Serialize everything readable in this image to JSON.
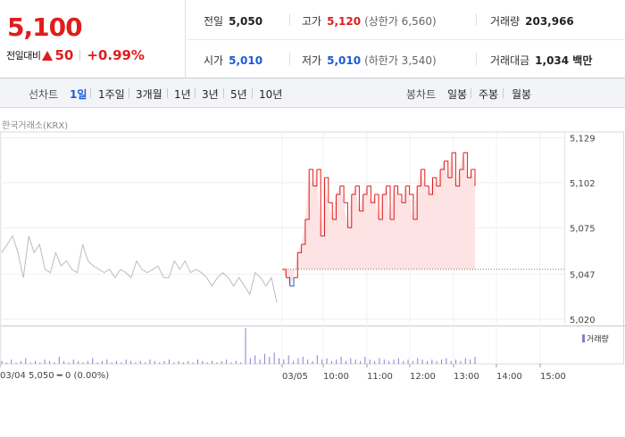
{
  "quote": {
    "current_price": "5,100",
    "change_label": "전일대비",
    "change_value": "50",
    "change_pct": "+0.99%",
    "stats": {
      "prev_close": {
        "label": "전일",
        "value": "5,050"
      },
      "high": {
        "label": "고가",
        "value": "5,120",
        "limit_label": "(상한가 6,560)"
      },
      "volume": {
        "label": "거래량",
        "value": "203,966"
      },
      "open": {
        "label": "시가",
        "value": "5,010"
      },
      "low": {
        "label": "저가",
        "value": "5,010",
        "limit_label": "(하한가 3,540)"
      },
      "amount": {
        "label": "거래대금",
        "value": "1,034 백만"
      }
    }
  },
  "period_tabs": {
    "line_label": "선차트",
    "line_periods": [
      "1일",
      "1주일",
      "3개월",
      "1년",
      "3년",
      "5년",
      "10년"
    ],
    "active_period": "1일",
    "candle_label": "봉차트",
    "candle_periods": [
      "일봉",
      "주봉",
      "월봉"
    ]
  },
  "chart_source": "한국거래소(KRX)",
  "legend_volume": "거래량",
  "footer_info": "03/04  5,050 ━ 0 (0.00%)",
  "colors": {
    "up": "#e01d1d",
    "down": "#1a5bd6",
    "neutral": "#bcbcbc",
    "fill": "#fde3e3",
    "volume": "#8c7bd3"
  },
  "chart_data": {
    "type": "line",
    "title": "",
    "xlabel": "",
    "ylabel": "",
    "y_ticks": [
      5020,
      5047,
      5075,
      5102,
      5129
    ],
    "y_tick_labels": [
      "5,020",
      "5,047",
      "5,075",
      "5,102",
      "5,129"
    ],
    "ylim": [
      5020,
      5129
    ],
    "x_tick_labels": [
      "03/04",
      "03/05",
      "10:00",
      "11:00",
      "12:00",
      "13:00",
      "14:00",
      "15:00"
    ],
    "baseline": 5050,
    "previous_day": {
      "name": "03/04",
      "values": [
        5060,
        5065,
        5070,
        5060,
        5045,
        5070,
        5060,
        5065,
        5050,
        5048,
        5060,
        5052,
        5055,
        5050,
        5048,
        5065,
        5055,
        5052,
        5050,
        5048,
        5050,
        5045,
        5050,
        5048,
        5045,
        5055,
        5050,
        5048,
        5050,
        5052,
        5045,
        5045,
        5055,
        5050,
        5055,
        5048,
        5050,
        5048,
        5045,
        5040,
        5045,
        5048,
        5045,
        5040,
        5045,
        5040,
        5035,
        5048,
        5045,
        5040,
        5045,
        5030
      ]
    },
    "current_day": {
      "name": "03/05",
      "values": [
        5050,
        5045,
        5040,
        5045,
        5060,
        5065,
        5080,
        5110,
        5100,
        5110,
        5070,
        5105,
        5090,
        5080,
        5095,
        5100,
        5090,
        5075,
        5095,
        5100,
        5085,
        5095,
        5100,
        5090,
        5095,
        5080,
        5095,
        5100,
        5080,
        5100,
        5095,
        5090,
        5100,
        5095,
        5080,
        5100,
        5110,
        5100,
        5095,
        5105,
        5100,
        5110,
        5115,
        5105,
        5120,
        5100,
        5110,
        5120,
        5105,
        5110,
        5100
      ]
    },
    "volume": [
      2,
      1,
      3,
      1,
      2,
      4,
      1,
      2,
      1,
      3,
      2,
      1,
      5,
      2,
      1,
      3,
      2,
      1,
      2,
      4,
      1,
      2,
      3,
      1,
      2,
      1,
      3,
      2,
      1,
      2,
      1,
      3,
      2,
      1,
      2,
      3,
      1,
      2,
      1,
      2,
      1,
      3,
      2,
      1,
      2,
      1,
      2,
      3,
      1,
      2,
      1,
      25,
      4,
      6,
      3,
      7,
      5,
      8,
      4,
      3,
      6,
      2,
      4,
      5,
      3,
      2,
      6,
      3,
      4,
      2,
      3,
      5,
      2,
      4,
      3,
      2,
      5,
      3,
      2,
      4,
      3,
      2,
      3,
      4,
      2,
      3,
      2,
      4,
      3,
      2,
      3,
      2,
      3,
      4,
      2,
      3,
      2,
      4,
      3,
      5
    ]
  }
}
